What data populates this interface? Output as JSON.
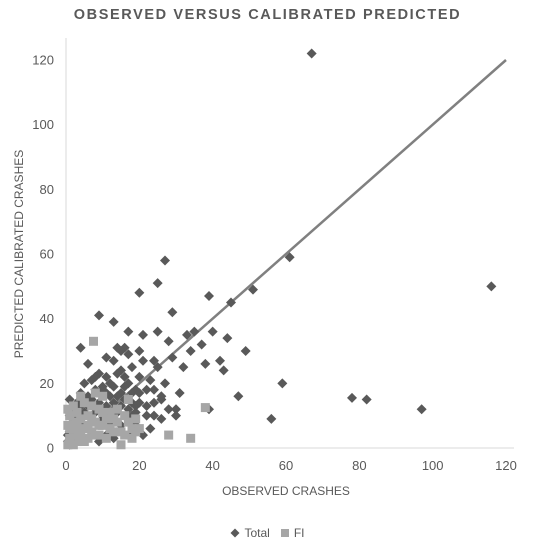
{
  "chart_data": {
    "type": "scatter",
    "title": "OBSERVED VERSUS CALIBRATED PREDICTED",
    "xlabel": "OBSERVED CRASHES",
    "ylabel": "PREDICTED CALIBRATED CRASHES",
    "xlim": [
      0,
      120
    ],
    "ylim": [
      0,
      120
    ],
    "xticks": [
      0,
      20,
      40,
      60,
      80,
      100,
      120
    ],
    "yticks": [
      0,
      20,
      40,
      60,
      80,
      100,
      120
    ],
    "grid": false,
    "legend_position": "bottom",
    "reference_line": {
      "x": [
        0,
        120
      ],
      "y": [
        0,
        120
      ],
      "color": "#808080"
    },
    "series": [
      {
        "name": "Total",
        "marker": "diamond",
        "color": "#595959",
        "points": [
          [
            67,
            122
          ],
          [
            116,
            50
          ],
          [
            97,
            12
          ],
          [
            82,
            15
          ],
          [
            78,
            15.5
          ],
          [
            61,
            59
          ],
          [
            59,
            20
          ],
          [
            56,
            9
          ],
          [
            51,
            49
          ],
          [
            49,
            30
          ],
          [
            47,
            16
          ],
          [
            45,
            45
          ],
          [
            44,
            34
          ],
          [
            43,
            24
          ],
          [
            42,
            27
          ],
          [
            39,
            47
          ],
          [
            40,
            36
          ],
          [
            39,
            12
          ],
          [
            38,
            26
          ],
          [
            37,
            32
          ],
          [
            35,
            36
          ],
          [
            34,
            30
          ],
          [
            33,
            35
          ],
          [
            32,
            25
          ],
          [
            31,
            17
          ],
          [
            30,
            12
          ],
          [
            29,
            42
          ],
          [
            29,
            28
          ],
          [
            28,
            33
          ],
          [
            27,
            58
          ],
          [
            27,
            20
          ],
          [
            26,
            15
          ],
          [
            25,
            51
          ],
          [
            25,
            36
          ],
          [
            25,
            25
          ],
          [
            24,
            27
          ],
          [
            24,
            18
          ],
          [
            23,
            21
          ],
          [
            22,
            13
          ],
          [
            21,
            35
          ],
          [
            21,
            27
          ],
          [
            20,
            48
          ],
          [
            20,
            30
          ],
          [
            20,
            22
          ],
          [
            19,
            18
          ],
          [
            19,
            13
          ],
          [
            18,
            25
          ],
          [
            18,
            10
          ],
          [
            17,
            36
          ],
          [
            17,
            29
          ],
          [
            16,
            31
          ],
          [
            16,
            22
          ],
          [
            16,
            15
          ],
          [
            15,
            30
          ],
          [
            15,
            24
          ],
          [
            15,
            17
          ],
          [
            14,
            31
          ],
          [
            14,
            23
          ],
          [
            14,
            11
          ],
          [
            13,
            39
          ],
          [
            13,
            27
          ],
          [
            13,
            19
          ],
          [
            12,
            16
          ],
          [
            12,
            8
          ],
          [
            11,
            28
          ],
          [
            11,
            22
          ],
          [
            11,
            13
          ],
          [
            10,
            19
          ],
          [
            10,
            9
          ],
          [
            9,
            41
          ],
          [
            9,
            23
          ],
          [
            9,
            14
          ],
          [
            8,
            18
          ],
          [
            8,
            11
          ],
          [
            7,
            21
          ],
          [
            7,
            15
          ],
          [
            7,
            9
          ],
          [
            6,
            26
          ],
          [
            6,
            13
          ],
          [
            6,
            6
          ],
          [
            5,
            20
          ],
          [
            5,
            11
          ],
          [
            5,
            7
          ],
          [
            4,
            31
          ],
          [
            4,
            17
          ],
          [
            4,
            10
          ],
          [
            3,
            14
          ],
          [
            3,
            8
          ],
          [
            2,
            12
          ],
          [
            2,
            6
          ],
          [
            1,
            15
          ],
          [
            1,
            10
          ],
          [
            1,
            6
          ],
          [
            0.5,
            4
          ],
          [
            0.5,
            2
          ],
          [
            24,
            10
          ],
          [
            22,
            10
          ],
          [
            20,
            14
          ],
          [
            18,
            14
          ],
          [
            26,
            9
          ],
          [
            28,
            12
          ],
          [
            30,
            10
          ],
          [
            17,
            20
          ],
          [
            19,
            7
          ],
          [
            21,
            4
          ],
          [
            23,
            6
          ],
          [
            17,
            4
          ],
          [
            15,
            7
          ],
          [
            13,
            3
          ],
          [
            11,
            4
          ],
          [
            9,
            2
          ],
          [
            7,
            4
          ],
          [
            5,
            3
          ],
          [
            3,
            5
          ],
          [
            2,
            2
          ],
          [
            1,
            1
          ],
          [
            12,
            20
          ],
          [
            10,
            18
          ],
          [
            8,
            22
          ],
          [
            14,
            16
          ],
          [
            16,
            19
          ],
          [
            18,
            17
          ],
          [
            20,
            17
          ],
          [
            22,
            18
          ],
          [
            24,
            14
          ],
          [
            26,
            16
          ],
          [
            6,
            16
          ],
          [
            4,
            13
          ],
          [
            3,
            10
          ],
          [
            2,
            8
          ],
          [
            1,
            5
          ],
          [
            11,
            17
          ],
          [
            13,
            14
          ],
          [
            15,
            13
          ],
          [
            17,
            12
          ],
          [
            19,
            11
          ]
        ]
      },
      {
        "name": "FI",
        "marker": "square",
        "color": "#a6a6a6",
        "points": [
          [
            7.5,
            33
          ],
          [
            38,
            12.5
          ],
          [
            34,
            3
          ],
          [
            28,
            4
          ],
          [
            15,
            1
          ],
          [
            10,
            16
          ],
          [
            8,
            17
          ],
          [
            4,
            16
          ],
          [
            18,
            6
          ],
          [
            17,
            15
          ],
          [
            16,
            10
          ],
          [
            14,
            8
          ],
          [
            13,
            5
          ],
          [
            12,
            11
          ],
          [
            11,
            9
          ],
          [
            10,
            7
          ],
          [
            9,
            12
          ],
          [
            9,
            4
          ],
          [
            8,
            8
          ],
          [
            7,
            13
          ],
          [
            7,
            5
          ],
          [
            6,
            10
          ],
          [
            6,
            3
          ],
          [
            5,
            14
          ],
          [
            5,
            6
          ],
          [
            4,
            9
          ],
          [
            4,
            3
          ],
          [
            3,
            11
          ],
          [
            3,
            6
          ],
          [
            3,
            2
          ],
          [
            2,
            13
          ],
          [
            2,
            8
          ],
          [
            2,
            4
          ],
          [
            1,
            10
          ],
          [
            1,
            6
          ],
          [
            1,
            2
          ],
          [
            0.5,
            12
          ],
          [
            0.5,
            7
          ],
          [
            0.5,
            1
          ],
          [
            12,
            6
          ],
          [
            11,
            3
          ],
          [
            13,
            9
          ],
          [
            15,
            5
          ],
          [
            16,
            4
          ],
          [
            18,
            3
          ],
          [
            19,
            5
          ],
          [
            14,
            12
          ],
          [
            10,
            11
          ],
          [
            8,
            4
          ],
          [
            6,
            7
          ],
          [
            5,
            2
          ],
          [
            4,
            5
          ],
          [
            3,
            8
          ],
          [
            2,
            1
          ],
          [
            1,
            3
          ],
          [
            17,
            8
          ],
          [
            19,
            9
          ],
          [
            20,
            6
          ],
          [
            9,
            7
          ],
          [
            7,
            9
          ]
        ]
      }
    ]
  }
}
